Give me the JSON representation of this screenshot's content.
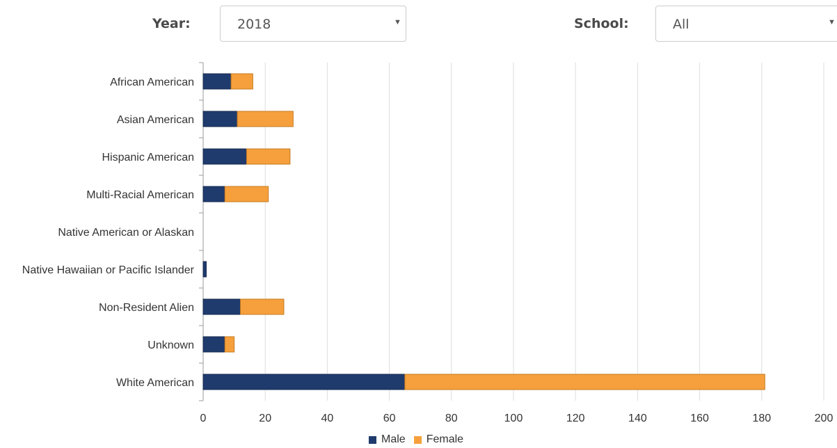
{
  "filters": {
    "year_label": "Year:",
    "year_value": "2018",
    "school_label": "School:",
    "school_value": "All",
    "caret": "▼"
  },
  "colors": {
    "male": "#1f3b6e",
    "female": "#f5a03c",
    "grid": "#dddddd",
    "axis": "#999999"
  },
  "chart_data": {
    "type": "bar",
    "orientation": "horizontal",
    "stacked": true,
    "categories": [
      "African American",
      "Asian American",
      "Hispanic American",
      "Multi-Racial American",
      "Native American or Alaskan",
      "Native Hawaiian or Pacific Islander",
      "Non-Resident Alien",
      "Unknown",
      "White American"
    ],
    "series": [
      {
        "name": "Male",
        "values": [
          9,
          11,
          14,
          7,
          0,
          1,
          12,
          7,
          65
        ]
      },
      {
        "name": "Female",
        "values": [
          7,
          18,
          14,
          14,
          0,
          0,
          14,
          3,
          116
        ]
      }
    ],
    "xlim": [
      0,
      200
    ],
    "xticks": [
      0,
      20,
      40,
      60,
      80,
      100,
      120,
      140,
      160,
      180,
      200
    ],
    "title": "",
    "xlabel": "",
    "ylabel": "",
    "grid": "vertical",
    "legend_position": "bottom-center"
  }
}
